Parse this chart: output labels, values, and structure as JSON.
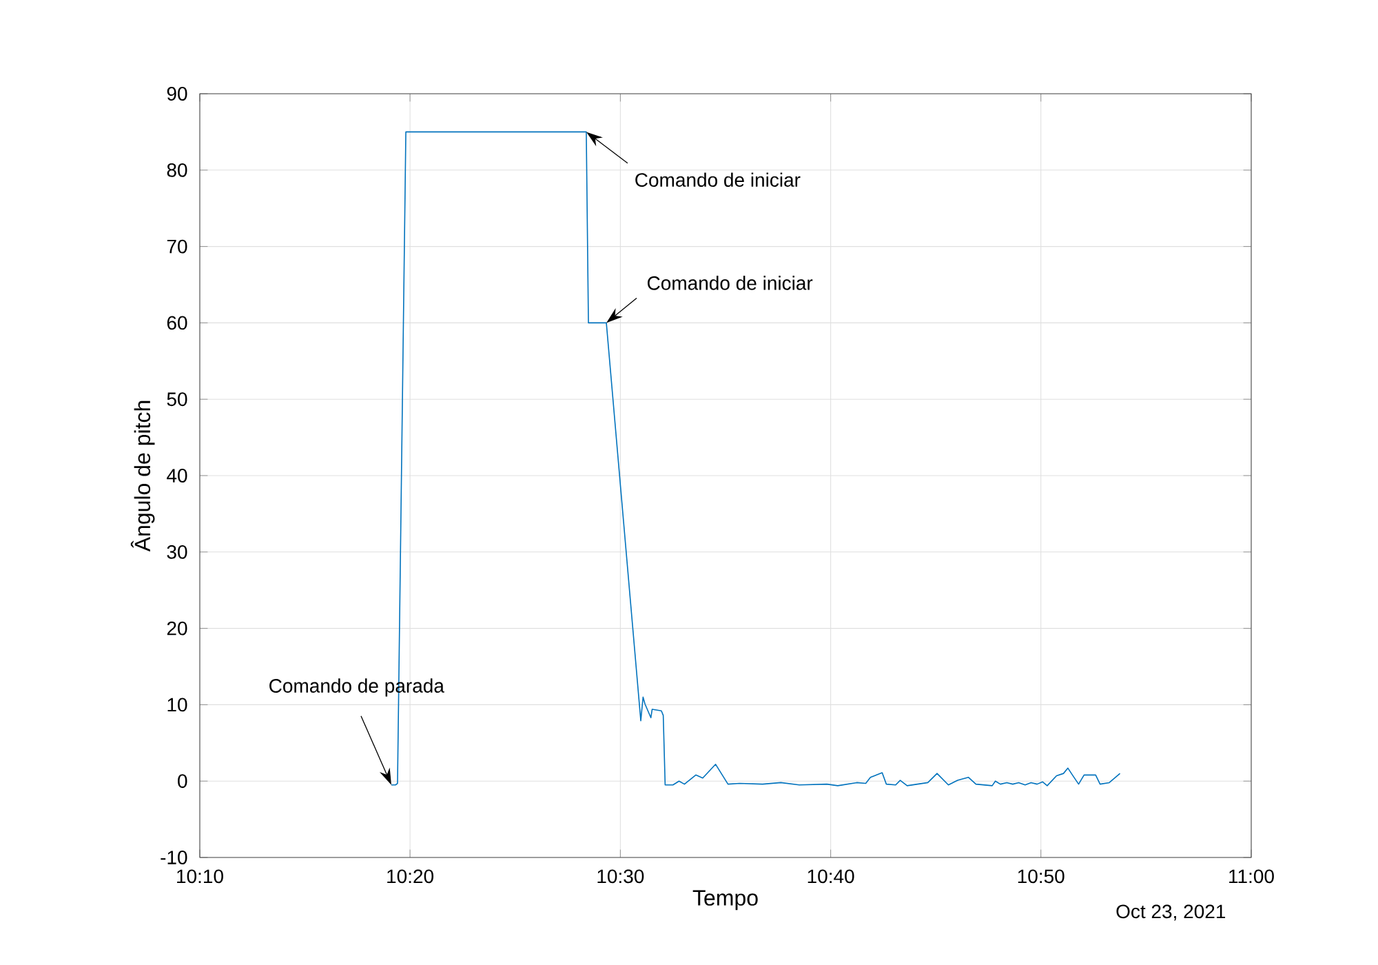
{
  "chart_data": {
    "type": "line",
    "xlabel": "Tempo",
    "ylabel": "Ângulo de pitch",
    "x": [
      10.3185,
      10.3218,
      10.3234,
      10.33,
      10.473,
      10.4747,
      10.4889,
      10.5162,
      10.518,
      10.5195,
      10.5242,
      10.5252,
      10.5325,
      10.534,
      10.5355,
      10.5417,
      10.5465,
      10.5508,
      10.5598,
      10.5653,
      10.5755,
      10.5853,
      10.5945,
      10.6127,
      10.6272,
      10.6418,
      10.6637,
      10.6723,
      10.6873,
      10.6945,
      10.6982,
      10.7075,
      10.7108,
      10.7182,
      10.7218,
      10.7273,
      10.7437,
      10.751,
      10.76,
      10.7673,
      10.7758,
      10.7818,
      10.7947,
      10.7972,
      10.8012,
      10.8063,
      10.811,
      10.8157,
      10.8208,
      10.8255,
      10.8303,
      10.8347,
      10.8383,
      10.8457,
      10.8512,
      10.8547,
      10.8583,
      10.8632,
      10.8675,
      10.8767,
      10.8802,
      10.8875,
      10.896
    ],
    "values": [
      -0.5,
      -0.5,
      -0.3,
      85,
      85,
      60,
      60,
      7.9,
      11,
      10.1,
      8.3,
      9.4,
      9.2,
      8.6,
      -0.5,
      -0.5,
      0,
      -0.4,
      0.8,
      0.4,
      2.2,
      -0.4,
      -0.3,
      -0.4,
      -0.2,
      -0.5,
      -0.4,
      -0.6,
      -0.2,
      -0.3,
      0.5,
      1.1,
      -0.4,
      -0.5,
      0.1,
      -0.6,
      -0.2,
      1.0,
      -0.5,
      0.1,
      0.5,
      -0.4,
      -0.6,
      0,
      -0.4,
      -0.2,
      -0.4,
      -0.2,
      -0.5,
      -0.2,
      -0.4,
      -0.1,
      -0.6,
      0.7,
      1.0,
      1.7,
      0.8,
      -0.4,
      0.8,
      0.8,
      -0.4,
      -0.2,
      1.0
    ],
    "color": "#0072bd",
    "xlim": [
      10.1667,
      11
    ],
    "xticks": [
      {
        "value": 10.1667,
        "label": "10:10"
      },
      {
        "value": 10.3333,
        "label": "10:20"
      },
      {
        "value": 10.5,
        "label": "10:30"
      },
      {
        "value": 10.6667,
        "label": "10:40"
      },
      {
        "value": 10.8333,
        "label": "10:50"
      },
      {
        "value": 11,
        "label": "11:00"
      }
    ],
    "ylim": [
      -10,
      90
    ],
    "yticks": [
      -10,
      0,
      10,
      20,
      30,
      40,
      50,
      60,
      70,
      80,
      90
    ],
    "grid": true,
    "line_style": "solid",
    "marker": "none",
    "annotations": [
      {
        "text": "Comando de iniciar",
        "x": 10.473,
        "y": 85
      },
      {
        "text": "Comando de iniciar",
        "x": 10.4889,
        "y": 60
      },
      {
        "text": "Comando de parada",
        "x": 10.3185,
        "y": -0.5
      },
      "Oct 23, 2021"
    ]
  }
}
